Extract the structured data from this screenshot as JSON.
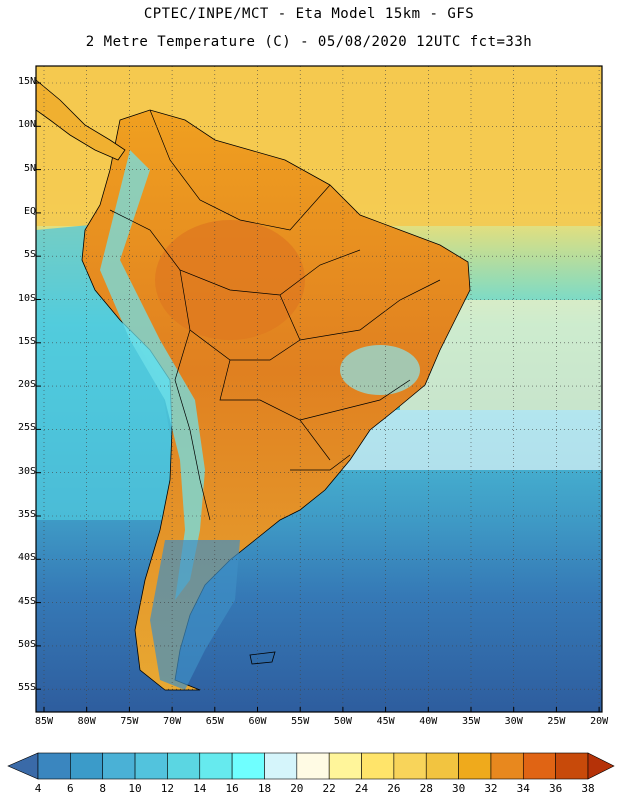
{
  "header": {
    "line1": "CPTEC/INPE/MCT -  Eta Model 15km - GFS",
    "line2": "2 Metre Temperature (C) - 05/08/2020 12UTC fct=33h"
  },
  "map": {
    "lat_labels": [
      "15N",
      "10N",
      "5N",
      "EQ",
      "5S",
      "10S",
      "15S",
      "20S",
      "25S",
      "30S",
      "35S",
      "40S",
      "45S",
      "50S",
      "55S"
    ],
    "lon_labels": [
      "85W",
      "80W",
      "75W",
      "70W",
      "65W",
      "60W",
      "55W",
      "50W",
      "45W",
      "40W",
      "35W",
      "30W",
      "25W",
      "20W"
    ]
  },
  "colorbar": {
    "labels": [
      "4",
      "6",
      "8",
      "10",
      "12",
      "14",
      "16",
      "18",
      "20",
      "22",
      "24",
      "26",
      "28",
      "30",
      "32",
      "34",
      "36",
      "38"
    ],
    "colors": [
      "#3a6aa8",
      "#3a86bf",
      "#3b9bc9",
      "#4ab1d6",
      "#52c3dd",
      "#5bd6e2",
      "#66eaee",
      "#6fffff",
      "#d5f5fb",
      "#fffbe4",
      "#fff59a",
      "#ffe46a",
      "#f8d45a",
      "#f2c440",
      "#efaa1c",
      "#e8881e",
      "#e06414",
      "#c84a0a",
      "#b53208"
    ],
    "ocean_gradient": [
      "#2e5d9e",
      "#3579b6",
      "#3f9bc6",
      "#4cc4d8",
      "#5cd9dd",
      "#f9e06e",
      "#f5d45c",
      "#f4cc58"
    ],
    "land_colors": [
      "#f0a020",
      "#e08020",
      "#e8a832"
    ]
  }
}
